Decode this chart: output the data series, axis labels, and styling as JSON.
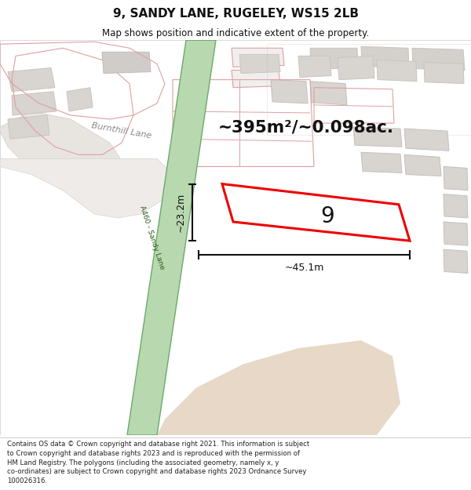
{
  "title": "9, SANDY LANE, RUGELEY, WS15 2LB",
  "subtitle": "Map shows position and indicative extent of the property.",
  "footer": "Contains OS data © Crown copyright and database right 2021. This information is subject to Crown copyright and database rights 2023 and is reproduced with the permission of HM Land Registry. The polygons (including the associated geometry, namely x, y co-ordinates) are subject to Crown copyright and database rights 2023 Ordnance Survey 100026316.",
  "area_text": "~395m²/~0.098ac.",
  "width_text": "~45.1m",
  "height_text": "~23.2m",
  "property_number": "9",
  "map_bg": "#f8f6f4",
  "road_green_fill": "#b8d8b0",
  "road_green_border": "#6aaa6a",
  "road_green_dark": "#5a9a5a",
  "property_outline_color": "#ee0000",
  "dim_line_color": "#111111",
  "text_color": "#111111",
  "parcel_outline": "#e0a0a0",
  "gray_building_fill": "#d8d4d0",
  "gray_building_stroke": "#c0bcb8",
  "pink_parcel_fill": "#f5f0f0",
  "beige_fill": "#e8d8c8",
  "road_surface": "#f0ece8",
  "burnthill_road_color": "#e8e4e0"
}
